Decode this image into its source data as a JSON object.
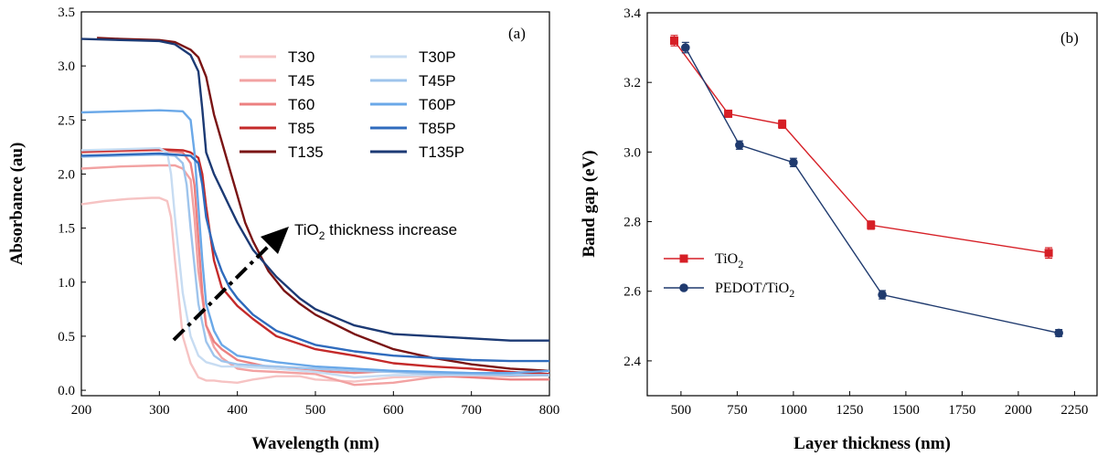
{
  "chart_data": [
    {
      "type": "line",
      "panel_label": "(a)",
      "xlabel": "Wavelength (nm)",
      "ylabel": "Absorbance (au)",
      "xlim": [
        200,
        800
      ],
      "ylim": [
        -0.05,
        3.5
      ],
      "xticks": [
        200,
        300,
        400,
        500,
        600,
        700,
        800
      ],
      "yticks": [
        0.0,
        0.5,
        1.0,
        1.5,
        2.0,
        2.5,
        3.0,
        3.5
      ],
      "ytick_labels": [
        "0.0",
        "0.5",
        "1.0",
        "1.5",
        "2.0",
        "2.5",
        "3.0",
        "3.5"
      ],
      "annotation": {
        "text_main": "TiO",
        "text_sub": "2",
        "text_rest": " thickness increase",
        "arrow": "dash-dot, pointing upper-right"
      },
      "legend_position": "top-center",
      "series": [
        {
          "name": "T30",
          "color": "#f6c3c3",
          "x": [
            200,
            230,
            260,
            290,
            300,
            310,
            315,
            320,
            330,
            340,
            350,
            360,
            370,
            380,
            400,
            420,
            450,
            480,
            500,
            550,
            600,
            650,
            700,
            750,
            800
          ],
          "y": [
            1.72,
            1.75,
            1.77,
            1.78,
            1.78,
            1.75,
            1.6,
            1.2,
            0.5,
            0.25,
            0.12,
            0.09,
            0.09,
            0.08,
            0.07,
            0.1,
            0.13,
            0.13,
            0.1,
            0.08,
            0.12,
            0.13,
            0.12,
            0.14,
            0.14
          ]
        },
        {
          "name": "T45",
          "color": "#f2a2a2",
          "x": [
            200,
            250,
            300,
            320,
            330,
            340,
            345,
            350,
            360,
            370,
            380,
            400,
            420,
            450,
            500,
            550,
            600,
            650,
            700,
            750,
            800
          ],
          "y": [
            2.05,
            2.07,
            2.08,
            2.08,
            2.05,
            1.95,
            1.6,
            1.1,
            0.6,
            0.4,
            0.3,
            0.2,
            0.18,
            0.17,
            0.15,
            0.05,
            0.07,
            0.12,
            0.14,
            0.13,
            0.14
          ]
        },
        {
          "name": "T60",
          "color": "#ec8080",
          "x": [
            200,
            250,
            300,
            330,
            340,
            345,
            350,
            355,
            360,
            370,
            380,
            400,
            450,
            500,
            550,
            600,
            650,
            700,
            750,
            800
          ],
          "y": [
            2.2,
            2.21,
            2.22,
            2.2,
            2.1,
            1.9,
            1.4,
            0.9,
            0.6,
            0.45,
            0.38,
            0.28,
            0.2,
            0.18,
            0.16,
            0.18,
            0.14,
            0.12,
            0.1,
            0.1
          ]
        },
        {
          "name": "T85",
          "color": "#c42a2a",
          "x": [
            200,
            250,
            300,
            330,
            340,
            350,
            355,
            360,
            370,
            380,
            400,
            420,
            450,
            500,
            550,
            600,
            650,
            700,
            750,
            800
          ],
          "y": [
            2.21,
            2.22,
            2.23,
            2.22,
            2.2,
            2.15,
            2.0,
            1.7,
            1.2,
            0.95,
            0.78,
            0.66,
            0.5,
            0.38,
            0.32,
            0.25,
            0.22,
            0.2,
            0.17,
            0.15
          ]
        },
        {
          "name": "T135",
          "color": "#7a1414",
          "x": [
            220,
            250,
            300,
            320,
            340,
            350,
            360,
            370,
            380,
            390,
            400,
            410,
            420,
            440,
            460,
            480,
            500,
            550,
            600,
            650,
            700,
            750,
            800
          ],
          "y": [
            3.26,
            3.25,
            3.24,
            3.22,
            3.15,
            3.08,
            2.9,
            2.55,
            2.3,
            2.05,
            1.8,
            1.55,
            1.38,
            1.1,
            0.92,
            0.8,
            0.7,
            0.52,
            0.38,
            0.3,
            0.24,
            0.2,
            0.18
          ]
        },
        {
          "name": "T30P",
          "color": "#c7dcf2",
          "x": [
            200,
            250,
            300,
            310,
            315,
            320,
            330,
            340,
            350,
            360,
            370,
            380,
            400,
            450,
            500,
            550,
            600,
            650,
            700,
            750,
            800
          ],
          "y": [
            2.22,
            2.23,
            2.24,
            2.2,
            2.0,
            1.6,
            0.9,
            0.5,
            0.32,
            0.26,
            0.24,
            0.22,
            0.22,
            0.2,
            0.17,
            0.12,
            0.14,
            0.14,
            0.14,
            0.14,
            0.14
          ]
        },
        {
          "name": "T45P",
          "color": "#9ec4ec",
          "x": [
            200,
            250,
            300,
            320,
            330,
            335,
            340,
            350,
            360,
            370,
            380,
            400,
            450,
            500,
            550,
            600,
            650,
            700,
            750,
            800
          ],
          "y": [
            2.16,
            2.17,
            2.18,
            2.17,
            2.1,
            1.9,
            1.5,
            0.8,
            0.45,
            0.32,
            0.27,
            0.24,
            0.22,
            0.2,
            0.18,
            0.17,
            0.15,
            0.15,
            0.14,
            0.14
          ]
        },
        {
          "name": "T60P",
          "color": "#6aa8e8",
          "x": [
            200,
            250,
            300,
            330,
            340,
            345,
            350,
            355,
            360,
            370,
            380,
            400,
            450,
            500,
            550,
            600,
            650,
            700,
            750,
            800
          ],
          "y": [
            2.57,
            2.58,
            2.59,
            2.58,
            2.5,
            2.2,
            1.7,
            1.2,
            0.8,
            0.55,
            0.42,
            0.32,
            0.26,
            0.22,
            0.2,
            0.18,
            0.17,
            0.16,
            0.16,
            0.18
          ]
        },
        {
          "name": "T85P",
          "color": "#2f6bbd",
          "x": [
            200,
            250,
            300,
            340,
            350,
            355,
            360,
            370,
            380,
            390,
            400,
            420,
            450,
            500,
            550,
            600,
            650,
            700,
            750,
            800
          ],
          "y": [
            2.17,
            2.18,
            2.19,
            2.17,
            2.1,
            1.9,
            1.6,
            1.3,
            1.1,
            0.95,
            0.85,
            0.7,
            0.55,
            0.42,
            0.36,
            0.32,
            0.3,
            0.28,
            0.27,
            0.27
          ]
        },
        {
          "name": "T135P",
          "color": "#1c3a74",
          "x": [
            200,
            250,
            300,
            320,
            340,
            350,
            355,
            360,
            370,
            380,
            390,
            400,
            420,
            450,
            480,
            500,
            550,
            600,
            650,
            700,
            750,
            800
          ],
          "y": [
            3.25,
            3.24,
            3.23,
            3.2,
            3.1,
            2.95,
            2.6,
            2.2,
            2.0,
            1.85,
            1.7,
            1.55,
            1.3,
            1.05,
            0.85,
            0.75,
            0.6,
            0.52,
            0.5,
            0.48,
            0.46,
            0.46
          ]
        }
      ]
    },
    {
      "type": "line",
      "panel_label": "(b)",
      "xlabel": "Layer thickness (nm)",
      "ylabel": "Band gap (eV)",
      "xlim": [
        350,
        2350
      ],
      "ylim": [
        2.3,
        3.4
      ],
      "xticks": [
        500,
        750,
        1000,
        1250,
        1500,
        1750,
        2000,
        2250
      ],
      "yticks": [
        2.4,
        2.6,
        2.8,
        3.0,
        3.2,
        3.4
      ],
      "ytick_labels": [
        "2.4",
        "2.6",
        "2.8",
        "3.0",
        "3.2",
        "3.4"
      ],
      "legend_position": "center-left",
      "series": [
        {
          "name_main": "TiO",
          "name_sub": "2",
          "marker": "square",
          "color": "#d61f26",
          "x": [
            470,
            710,
            950,
            1345,
            2135
          ],
          "y": [
            3.32,
            3.11,
            3.08,
            2.79,
            2.71
          ],
          "err": [
            0.015,
            0.01,
            0.012,
            0.012,
            0.015
          ]
        },
        {
          "name_main": "PEDOT/TiO",
          "name_sub": "2",
          "marker": "circle",
          "color": "#1f3a6e",
          "x": [
            520,
            760,
            1000,
            1395,
            2180
          ],
          "y": [
            3.3,
            3.02,
            2.97,
            2.59,
            2.48
          ],
          "err": [
            0.015,
            0.012,
            0.012,
            0.012,
            0.01
          ]
        }
      ]
    }
  ]
}
